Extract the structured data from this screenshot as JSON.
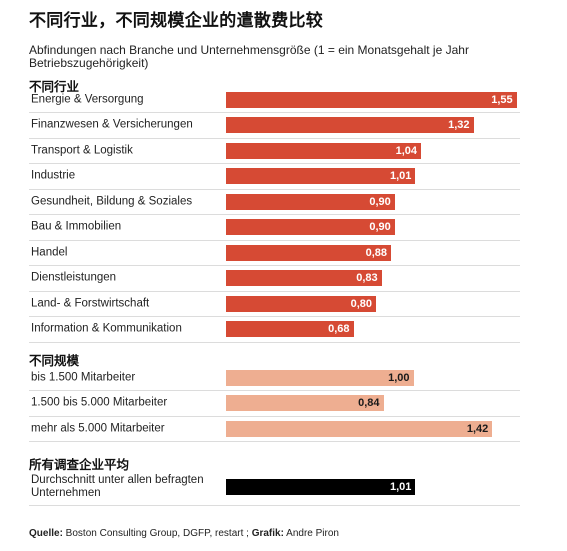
{
  "title": "不同行业，不同规模企业的遣散费比较",
  "subtitle": "Abfindungen nach Branche und Unternehmensgröße (1 = ein Monatsgehalt je Jahr Betriebszugehörigkeit)",
  "colors": {
    "industry": "#d64a34",
    "size": "#eeae91",
    "average": "#000000",
    "value_text_dark_bg": "#ffffff",
    "value_text_light_bg": "#1a1a1a"
  },
  "chart_data": {
    "type": "bar",
    "orientation": "horizontal",
    "title": "不同行业，不同规模企业的遣散费比较",
    "subtitle": "Abfindungen nach Branche und Unternehmensgröße (1 = ein Monatsgehalt je Jahr Betriebszugehörigkeit)",
    "xlim": [
      0,
      1.6
    ],
    "grid": false,
    "groups": [
      {
        "heading": "不同行业",
        "color": "#d64a34",
        "items": [
          {
            "label": "Energie & Versorgung",
            "value": 1.55,
            "value_label": "1,55"
          },
          {
            "label": "Finanzwesen & Versicherungen",
            "value": 1.32,
            "value_label": "1,32"
          },
          {
            "label": "Transport & Logistik",
            "value": 1.04,
            "value_label": "1,04"
          },
          {
            "label": "Industrie",
            "value": 1.01,
            "value_label": "1,01"
          },
          {
            "label": "Gesundheit, Bildung & Soziales",
            "value": 0.9,
            "value_label": "0,90"
          },
          {
            "label": "Bau & Immobilien",
            "value": 0.9,
            "value_label": "0,90"
          },
          {
            "label": "Handel",
            "value": 0.88,
            "value_label": "0,88"
          },
          {
            "label": "Dienstleistungen",
            "value": 0.83,
            "value_label": "0,83"
          },
          {
            "label": "Land- & Forstwirtschaft",
            "value": 0.8,
            "value_label": "0,80"
          },
          {
            "label": "Information & Kommunikation",
            "value": 0.68,
            "value_label": "0,68"
          }
        ]
      },
      {
        "heading": "不同规模",
        "color": "#eeae91",
        "items": [
          {
            "label": "bis 1.500 Mitarbeiter",
            "value": 1.0,
            "value_label": "1,00"
          },
          {
            "label": "1.500 bis 5.000 Mitarbeiter",
            "value": 0.84,
            "value_label": "0,84"
          },
          {
            "label": "mehr als 5.000 Mitarbeiter",
            "value": 1.42,
            "value_label": "1,42"
          }
        ]
      },
      {
        "heading": "所有调查企业平均",
        "color": "#000000",
        "items": [
          {
            "label": "Durchschnitt unter allen befragten Unternehmen",
            "value": 1.01,
            "value_label": "1,01"
          }
        ]
      }
    ]
  },
  "source": {
    "source_label": "Quelle:",
    "source_text": " Boston Consulting Group, DGFP, restart ; ",
    "graphic_label": "Grafik:",
    "graphic_text": " Andre Piron"
  }
}
